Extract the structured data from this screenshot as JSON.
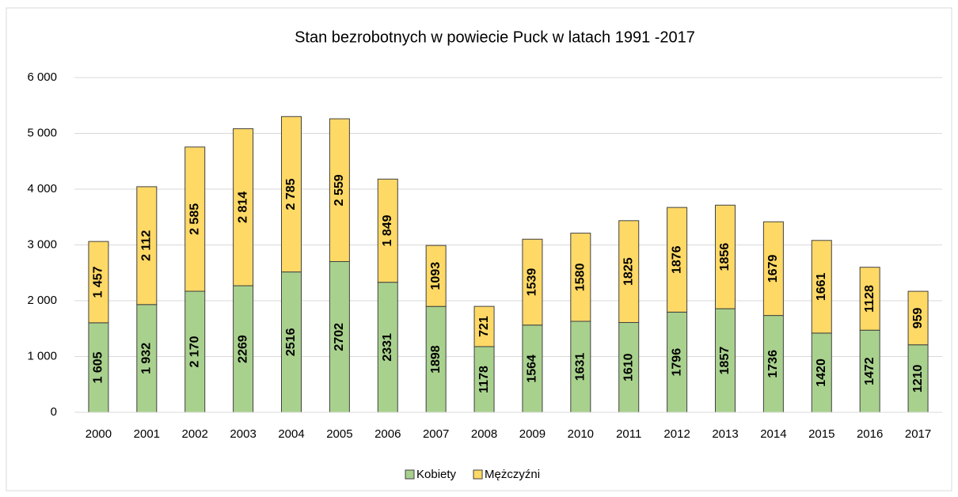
{
  "chart_data": {
    "type": "bar",
    "stacked": true,
    "title": "Stan bezrobotnych w powiecie Puck w latach 1991 -2017",
    "categories": [
      "2000",
      "2001",
      "2002",
      "2003",
      "2004",
      "2005",
      "2006",
      "2007",
      "2008",
      "2009",
      "2010",
      "2011",
      "2012",
      "2013",
      "2014",
      "2015",
      "2016",
      "2017"
    ],
    "series": [
      {
        "name": "Kobiety",
        "color": "#a9d18e",
        "values": [
          1605,
          1932,
          2170,
          2269,
          2516,
          2702,
          2331,
          1898,
          1178,
          1564,
          1631,
          1610,
          1796,
          1857,
          1736,
          1420,
          1472,
          1210
        ],
        "value_labels": [
          "1 605",
          "1 932",
          "2 170",
          "2269",
          "2516",
          "2702",
          "2331",
          "1898",
          "1178",
          "1564",
          "1631",
          "1610",
          "1796",
          "1857",
          "1736",
          "1420",
          "1472",
          "1210"
        ]
      },
      {
        "name": "Mężczyźni",
        "color": "#ffd966",
        "values": [
          1457,
          2112,
          2585,
          2814,
          2785,
          2559,
          1849,
          1093,
          721,
          1539,
          1580,
          1825,
          1876,
          1856,
          1679,
          1661,
          1128,
          959
        ],
        "value_labels": [
          "1 457",
          "2 112",
          "2 585",
          "2 814",
          "2 785",
          "2 559",
          "1 849",
          "1093",
          "721",
          "1539",
          "1580",
          "1825",
          "1876",
          "1856",
          "1679",
          "1661",
          "1128",
          "959"
        ]
      }
    ],
    "ylim": [
      0,
      6000
    ],
    "yticks": [
      0,
      {
        "value": 1000,
        "label": "1 000"
      },
      {
        "value": 2000,
        "label": "2 000"
      },
      {
        "value": 3000,
        "label": "3 000"
      },
      {
        "value": 4000,
        "label": "4 000"
      },
      {
        "value": 5000,
        "label": "5 000"
      },
      {
        "value": 6000,
        "label": "6 000"
      }
    ],
    "grid": true,
    "legend": "bottom"
  }
}
